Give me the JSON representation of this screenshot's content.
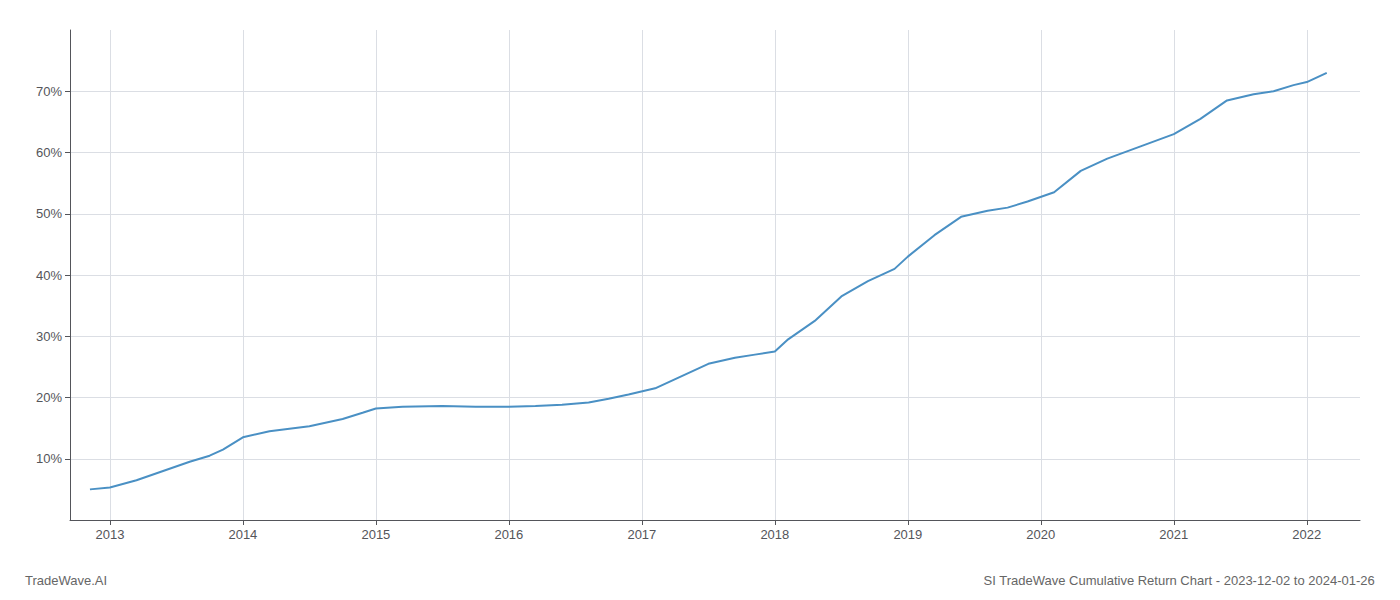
{
  "chart_data": {
    "type": "line",
    "annotations": [
      "TradeWave.AI",
      "SI TradeWave Cumulative Return Chart - 2023-12-02 to 2024-01-26"
    ],
    "x": [
      2012.85,
      2013.0,
      2013.2,
      2013.4,
      2013.6,
      2013.75,
      2013.85,
      2014.0,
      2014.2,
      2014.5,
      2014.75,
      2014.9,
      2015.0,
      2015.2,
      2015.5,
      2015.75,
      2016.0,
      2016.2,
      2016.4,
      2016.6,
      2016.75,
      2016.9,
      2017.1,
      2017.3,
      2017.5,
      2017.7,
      2017.85,
      2018.0,
      2018.1,
      2018.3,
      2018.5,
      2018.7,
      2018.9,
      2019.0,
      2019.2,
      2019.4,
      2019.6,
      2019.75,
      2019.9,
      2020.1,
      2020.3,
      2020.5,
      2020.75,
      2021.0,
      2021.2,
      2021.4,
      2021.6,
      2021.75,
      2021.9,
      2022.0,
      2022.15
    ],
    "values": [
      5.0,
      5.3,
      6.5,
      8.0,
      9.5,
      10.5,
      11.5,
      13.5,
      14.5,
      15.3,
      16.5,
      17.5,
      18.2,
      18.5,
      18.6,
      18.5,
      18.5,
      18.6,
      18.8,
      19.2,
      19.8,
      20.5,
      21.5,
      23.5,
      25.5,
      26.5,
      27.0,
      27.5,
      29.5,
      32.5,
      36.5,
      39.0,
      41.0,
      43.0,
      46.5,
      49.5,
      50.5,
      51.0,
      52.0,
      53.5,
      57.0,
      59.0,
      61.0,
      63.0,
      65.5,
      68.5,
      69.5,
      70.0,
      71.0,
      71.5,
      73.0
    ],
    "color": "#4a90c4",
    "xlim": [
      2012.7,
      2022.4
    ],
    "xticks": [
      2013,
      2014,
      2015,
      2016,
      2017,
      2018,
      2019,
      2020,
      2021,
      2022
    ],
    "ylim": [
      0,
      80
    ],
    "yticks": [
      {
        "value": 10,
        "label": "10%"
      },
      {
        "value": 20,
        "label": "20%"
      },
      {
        "value": 30,
        "label": "30%"
      },
      {
        "value": 40,
        "label": "40%"
      },
      {
        "value": 50,
        "label": "50%"
      },
      {
        "value": 60,
        "label": "60%"
      },
      {
        "value": 70,
        "label": "70%"
      }
    ],
    "grid": true
  }
}
